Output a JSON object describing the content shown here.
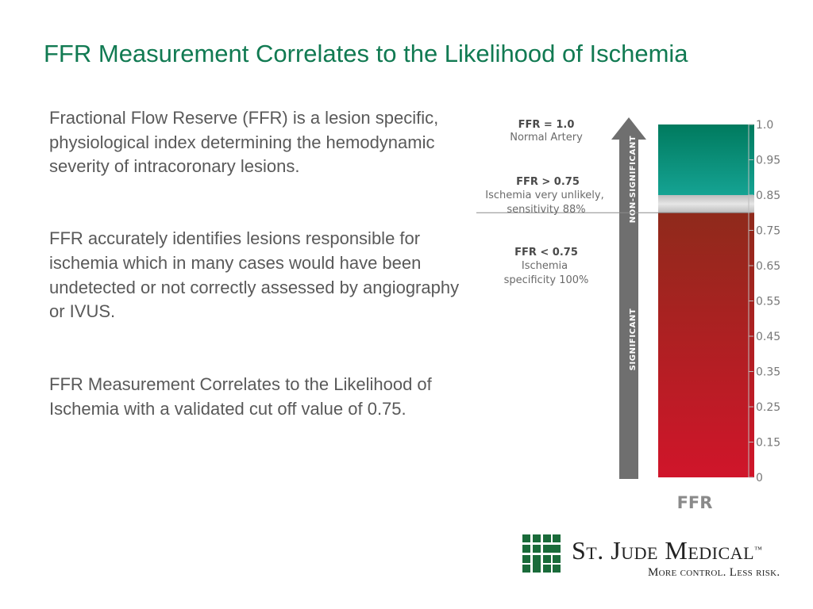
{
  "slide": {
    "title": "FFR Measurement Correlates to the Likelihood of Ischemia",
    "paragraphs": [
      "Fractional Flow Reserve (FFR) is a lesion specific, physiological index determining the hemodynamic severity of intracoronary lesions.",
      "FFR accurately identifies lesions responsible for ischemia which in many cases would have been undetected or not correctly assessed by angiography or IVUS.",
      "FFR Measurement Correlates to the Likelihood of Ischemia with a validated cut off value of 0.75."
    ]
  },
  "chart_data": {
    "type": "bar",
    "xlabel": "FFR",
    "ylim": [
      0,
      1.0
    ],
    "tick_labels": [
      "1.0",
      "0.95",
      "0.85",
      "0.75",
      "0.65",
      "0.55",
      "0.45",
      "0.35",
      "0.25",
      "0.15",
      "0"
    ],
    "cutoff": 0.75,
    "zones": [
      {
        "from": 0.8,
        "to": 1.0,
        "color": "#0a8a6a",
        "name": "non-significant"
      },
      {
        "from": 0.75,
        "to": 0.8,
        "color": "#c8c8c8",
        "name": "gray-zone"
      },
      {
        "from": 0,
        "to": 0.75,
        "color": "#b81c1c",
        "name": "significant"
      }
    ],
    "arrow_labels": {
      "upper": "NON-SIGNIFICANT",
      "lower": "SIGNIFICANT"
    },
    "annotations": [
      {
        "title": "FFR = 1.0",
        "lines": [
          "Normal Artery"
        ]
      },
      {
        "title": "FFR > 0.75",
        "lines": [
          "Ischemia very unlikely,",
          "sensitivity 88%"
        ]
      },
      {
        "title": "FFR < 0.75",
        "lines": [
          "Ischemia",
          "specificity 100%"
        ]
      }
    ],
    "colors": {
      "top_green": "#007a5e",
      "mid_teal": "#15a393",
      "red_top": "#8f2a1b",
      "red_bottom": "#d0152a",
      "arrow": "#6f6f6f"
    }
  },
  "logo": {
    "name": "St. Jude Medical",
    "trademark": "™",
    "tagline": "More control. Less risk.",
    "color": "#1a6b3a"
  }
}
